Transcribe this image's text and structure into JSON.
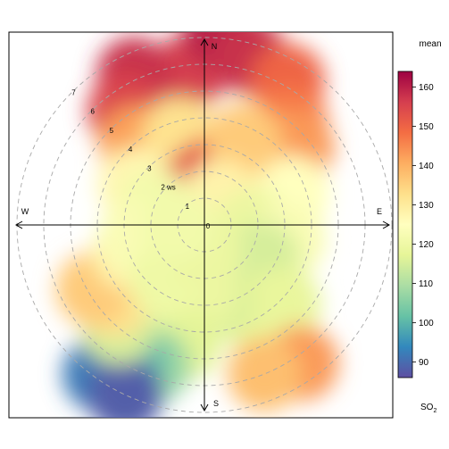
{
  "chart_data": {
    "type": "heatmap",
    "subtype": "polar",
    "title": "",
    "legend_title": "mean",
    "legend_units": "SO2",
    "legend_ticks": [
      90,
      100,
      110,
      120,
      130,
      140,
      150,
      160
    ],
    "color_range": [
      86,
      164
    ],
    "colormap": [
      "#5e4fa2",
      "#3288bd",
      "#66c2a5",
      "#abdda4",
      "#e6f598",
      "#ffffbf",
      "#fee08b",
      "#fdae61",
      "#f46d43",
      "#d53e4f",
      "#9e0142"
    ],
    "radial_labels": [
      "1",
      "2 ws",
      "3",
      "4",
      "5",
      "6",
      "7"
    ],
    "radial_ticks": [
      1,
      2,
      3,
      4,
      5,
      6,
      7
    ],
    "origin_label": "0",
    "compass": {
      "north": "N",
      "east": "E",
      "south": "S",
      "west": "W"
    },
    "grid": true,
    "blobs": [
      {
        "angle": 355,
        "r": 5.8,
        "value": 156
      },
      {
        "angle": 5,
        "r": 7.2,
        "value": 160
      },
      {
        "angle": 15,
        "r": 6.5,
        "value": 158
      },
      {
        "angle": 30,
        "r": 6.2,
        "value": 150
      },
      {
        "angle": 40,
        "r": 5.0,
        "value": 147
      },
      {
        "angle": 50,
        "r": 4.5,
        "value": 143
      },
      {
        "angle": 60,
        "r": 2.5,
        "value": 128
      },
      {
        "angle": 70,
        "r": 3.5,
        "value": 125
      },
      {
        "angle": 335,
        "r": 6.2,
        "value": 158
      },
      {
        "angle": 325,
        "r": 5.2,
        "value": 155
      },
      {
        "angle": 320,
        "r": 4.0,
        "value": 142
      },
      {
        "angle": 345,
        "r": 3.5,
        "value": 132
      },
      {
        "angle": 10,
        "r": 2.0,
        "value": 150
      },
      {
        "angle": 355,
        "r": 1.6,
        "value": 153
      },
      {
        "angle": 25,
        "r": 3.5,
        "value": 136
      },
      {
        "angle": 300,
        "r": 3.0,
        "value": 127
      },
      {
        "angle": 290,
        "r": 2.0,
        "value": 121
      },
      {
        "angle": 30,
        "r": 1.2,
        "value": 128
      },
      {
        "angle": 90,
        "r": 1.8,
        "value": 119
      },
      {
        "angle": 100,
        "r": 3.2,
        "value": 123
      },
      {
        "angle": 120,
        "r": 2.5,
        "value": 115
      },
      {
        "angle": 135,
        "r": 4.2,
        "value": 118
      },
      {
        "angle": 150,
        "r": 3.8,
        "value": 118
      },
      {
        "angle": 145,
        "r": 6.3,
        "value": 143
      },
      {
        "angle": 158,
        "r": 6.0,
        "value": 138
      },
      {
        "angle": 170,
        "r": 3.0,
        "value": 116
      },
      {
        "angle": 185,
        "r": 2.5,
        "value": 119
      },
      {
        "angle": 190,
        "r": 4.5,
        "value": 117
      },
      {
        "angle": 200,
        "r": 5.6,
        "value": 107
      },
      {
        "angle": 210,
        "r": 5.8,
        "value": 100
      },
      {
        "angle": 215,
        "r": 6.8,
        "value": 92
      },
      {
        "angle": 205,
        "r": 7.0,
        "value": 88
      },
      {
        "angle": 220,
        "r": 5.0,
        "value": 115
      },
      {
        "angle": 230,
        "r": 4.4,
        "value": 132
      },
      {
        "angle": 240,
        "r": 4.8,
        "value": 136
      },
      {
        "angle": 250,
        "r": 3.0,
        "value": 128
      },
      {
        "angle": 260,
        "r": 2.6,
        "value": 123
      },
      {
        "angle": 215,
        "r": 2.5,
        "value": 120
      },
      {
        "angle": 180,
        "r": 1.0,
        "value": 119
      },
      {
        "angle": 270,
        "r": 1.0,
        "value": 121
      }
    ]
  }
}
